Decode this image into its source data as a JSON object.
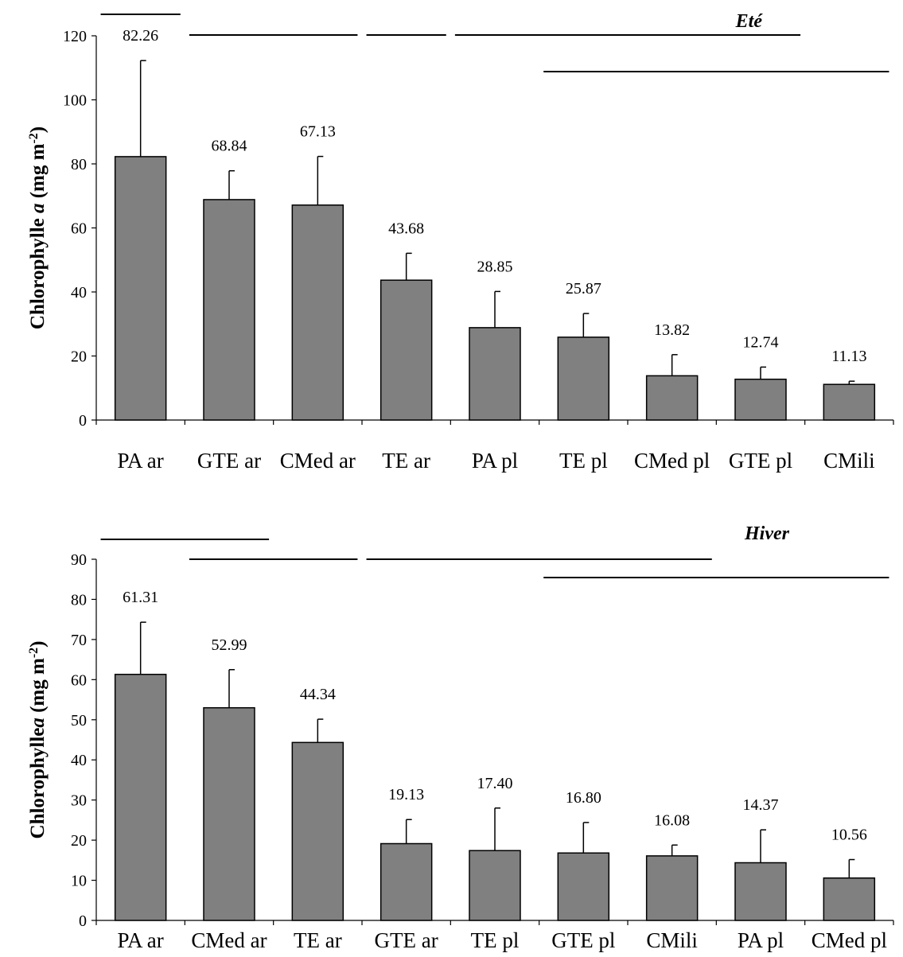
{
  "chart_data": [
    {
      "type": "bar",
      "title": "Eté",
      "ylabel": {
        "prefix": "Chlorophylle ",
        "var": "a",
        "mid": "  (mg m",
        "sup": "-2",
        "suffix": ")"
      },
      "ylim": [
        0,
        120
      ],
      "yticks": [
        0,
        20,
        40,
        60,
        80,
        100,
        120
      ],
      "categories": [
        "PA ar",
        "GTE ar",
        "CMed ar",
        "TE ar",
        "PA pl",
        "TE pl",
        "CMed pl",
        "GTE pl",
        "CMili"
      ],
      "values": [
        82.26,
        68.84,
        67.13,
        43.68,
        28.85,
        25.87,
        13.82,
        12.74,
        11.13
      ],
      "value_labels": [
        "82.26",
        "68.84",
        "67.13",
        "43.68",
        "28.85",
        "25.87",
        "13.82",
        "12.74",
        "11.13"
      ],
      "error_upper": [
        30,
        9,
        15.2,
        8.4,
        11.3,
        7.4,
        6.6,
        3.8,
        1
      ],
      "homogeneous_groups": [
        {
          "from": 0,
          "to": 0
        },
        {
          "from": 1,
          "to": 2
        },
        {
          "from": 3,
          "to": 3
        },
        {
          "from": 4,
          "to": 7
        },
        {
          "from": 5,
          "to": 8
        }
      ],
      "bar_color": "#808080"
    },
    {
      "type": "bar",
      "title": "Hiver",
      "ylabel": {
        "prefix": "Chlorophylle",
        "var": "a",
        "mid": "  (mg m",
        "sup": "-2",
        "suffix": ")"
      },
      "ylim": [
        0,
        90
      ],
      "yticks": [
        0,
        10,
        20,
        30,
        40,
        50,
        60,
        70,
        80,
        90
      ],
      "categories": [
        "PA ar",
        "CMed ar",
        "TE ar",
        "GTE ar",
        "TE pl",
        "GTE pl",
        "CMili",
        "PA pl",
        "CMed pl"
      ],
      "values": [
        61.31,
        52.99,
        44.34,
        19.13,
        17.4,
        16.8,
        16.08,
        14.37,
        10.56
      ],
      "value_labels": [
        "61.31",
        "52.99",
        "44.34",
        "19.13",
        "17.40",
        "16.80",
        "16.08",
        "14.37",
        "10.56"
      ],
      "error_upper": [
        13,
        9.5,
        5.8,
        6,
        10.6,
        7.6,
        2.7,
        8.2,
        4.6
      ],
      "homogeneous_groups": [
        {
          "from": 0,
          "to": 1
        },
        {
          "from": 1,
          "to": 2
        },
        {
          "from": 3,
          "to": 6
        },
        {
          "from": 5,
          "to": 8
        }
      ],
      "bar_color": "#808080"
    }
  ]
}
